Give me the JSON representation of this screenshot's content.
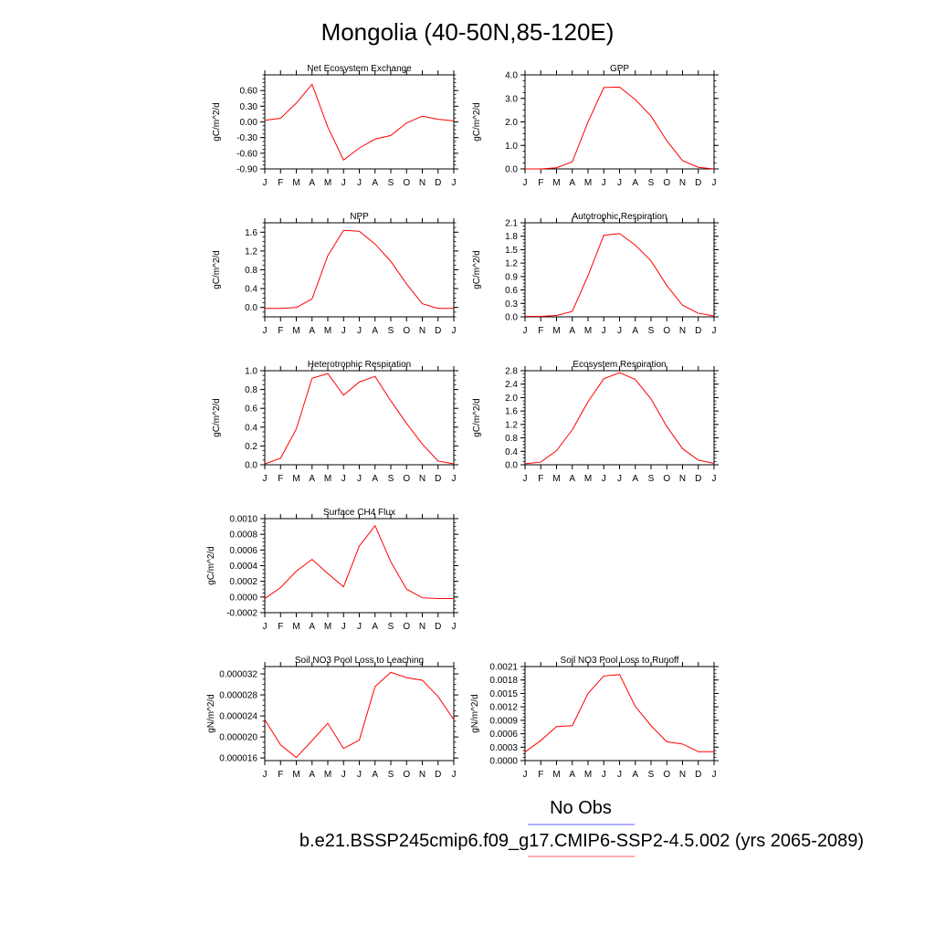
{
  "figure": {
    "title": "Mongolia (40-50N,85-120E)"
  },
  "legend": {
    "obs_label": "No Obs",
    "case_label": "b.e21.BSSP245cmip6.f09_g17.CMIP6-SSP2-4.5.002 (yrs 2065-2089)",
    "obs_color": "#7f7fff",
    "case_color": "#ff7f7f"
  },
  "chart_data": [
    {
      "type": "line",
      "title": "Net Ecosystem Exchange",
      "ylabel": "gC/m^2/d",
      "categories": [
        "J",
        "F",
        "M",
        "A",
        "M",
        "J",
        "J",
        "A",
        "S",
        "O",
        "N",
        "D",
        "J"
      ],
      "values": [
        0.03,
        0.07,
        0.36,
        0.72,
        -0.1,
        -0.73,
        -0.5,
        -0.33,
        -0.26,
        -0.02,
        0.11,
        0.05,
        0.02
      ],
      "ylim": [
        -0.9,
        0.9
      ],
      "yticks": [
        -0.9,
        -0.6,
        -0.3,
        0.0,
        0.3,
        0.6
      ],
      "ytick_labels": [
        "-0.90",
        "-0.60",
        "-0.30",
        "0.00",
        "0.30",
        "0.60"
      ],
      "color": "#ff0000"
    },
    {
      "type": "line",
      "title": "GPP",
      "ylabel": "gC/m^2/d",
      "categories": [
        "J",
        "F",
        "M",
        "A",
        "M",
        "J",
        "J",
        "A",
        "S",
        "O",
        "N",
        "D",
        "J"
      ],
      "values": [
        0.0,
        0.0,
        0.05,
        0.3,
        2.0,
        3.46,
        3.48,
        2.95,
        2.25,
        1.2,
        0.35,
        0.07,
        0.0
      ],
      "ylim": [
        0,
        4.0
      ],
      "yticks": [
        0,
        1,
        2,
        3,
        4
      ],
      "ytick_labels": [
        "0.0",
        "1.0",
        "2.0",
        "3.0",
        "4.0"
      ],
      "color": "#ff0000"
    },
    {
      "type": "line",
      "title": "NPP",
      "ylabel": "gC/m^2/d",
      "categories": [
        "J",
        "F",
        "M",
        "A",
        "M",
        "J",
        "J",
        "A",
        "S",
        "O",
        "N",
        "D",
        "J"
      ],
      "values": [
        -0.02,
        -0.02,
        0.0,
        0.18,
        1.1,
        1.64,
        1.62,
        1.35,
        0.98,
        0.5,
        0.08,
        -0.02,
        -0.02
      ],
      "ylim": [
        -0.2,
        1.8
      ],
      "yticks": [
        0.0,
        0.4,
        0.8,
        1.2,
        1.6
      ],
      "ytick_labels": [
        "0.0",
        "0.4",
        "0.8",
        "1.2",
        "1.6"
      ],
      "color": "#ff0000"
    },
    {
      "type": "line",
      "title": "Autotrophic Respiration",
      "ylabel": "gC/m^2/d",
      "categories": [
        "J",
        "F",
        "M",
        "A",
        "M",
        "J",
        "J",
        "A",
        "S",
        "O",
        "N",
        "D",
        "J"
      ],
      "values": [
        0.01,
        0.01,
        0.03,
        0.12,
        0.92,
        1.82,
        1.86,
        1.6,
        1.25,
        0.7,
        0.26,
        0.08,
        0.02
      ],
      "ylim": [
        0,
        2.1
      ],
      "yticks": [
        0,
        0.3,
        0.6,
        0.9,
        1.2,
        1.5,
        1.8,
        2.1
      ],
      "ytick_labels": [
        "0.0",
        "0.3",
        "0.6",
        "0.9",
        "1.2",
        "1.5",
        "1.8",
        "2.1"
      ],
      "color": "#ff0000"
    },
    {
      "type": "line",
      "title": "Heterotrophic Respiration",
      "ylabel": "gC/m^2/d",
      "categories": [
        "J",
        "F",
        "M",
        "A",
        "M",
        "J",
        "J",
        "A",
        "S",
        "O",
        "N",
        "D",
        "J"
      ],
      "values": [
        0.01,
        0.07,
        0.38,
        0.92,
        0.97,
        0.74,
        0.88,
        0.94,
        0.68,
        0.44,
        0.22,
        0.04,
        0.01
      ],
      "ylim": [
        0,
        1.0
      ],
      "yticks": [
        0,
        0.2,
        0.4,
        0.6,
        0.8,
        1.0
      ],
      "ytick_labels": [
        "0.0",
        "0.2",
        "0.4",
        "0.6",
        "0.8",
        "1.0"
      ],
      "color": "#ff0000"
    },
    {
      "type": "line",
      "title": "Ecosystem Respiration",
      "ylabel": "gC/m^2/d",
      "categories": [
        "J",
        "F",
        "M",
        "A",
        "M",
        "J",
        "J",
        "A",
        "S",
        "O",
        "N",
        "D",
        "J"
      ],
      "values": [
        0.03,
        0.08,
        0.42,
        1.04,
        1.88,
        2.56,
        2.74,
        2.54,
        1.96,
        1.14,
        0.48,
        0.14,
        0.04
      ],
      "ylim": [
        0,
        2.8
      ],
      "yticks": [
        0,
        0.4,
        0.8,
        1.2,
        1.6,
        2.0,
        2.4,
        2.8
      ],
      "ytick_labels": [
        "0.0",
        "0.4",
        "0.8",
        "1.2",
        "1.6",
        "2.0",
        "2.4",
        "2.8"
      ],
      "color": "#ff0000"
    },
    {
      "type": "line",
      "title": "Surface CH4 Flux",
      "ylabel": "gC/m^2/d",
      "categories": [
        "J",
        "F",
        "M",
        "A",
        "M",
        "J",
        "J",
        "A",
        "S",
        "O",
        "N",
        "D",
        "J"
      ],
      "values": [
        -2e-05,
        0.00012,
        0.00033,
        0.00048,
        0.0003,
        0.00013,
        0.00065,
        0.00091,
        0.00045,
        0.0001,
        -1e-05,
        -2e-05,
        -2e-05
      ],
      "ylim": [
        -0.0002,
        0.001
      ],
      "yticks": [
        -0.0002,
        0.0,
        0.0002,
        0.0004,
        0.0006,
        0.0008,
        0.001
      ],
      "ytick_labels": [
        "-0.0002",
        "0.0000",
        "0.0002",
        "0.0004",
        "0.0006",
        "0.0008",
        "0.0010"
      ],
      "color": "#ff0000"
    },
    {
      "type": "line",
      "title": "Soil NO3 Pool Loss to Leaching",
      "ylabel": "gN/m^2/d",
      "categories": [
        "J",
        "F",
        "M",
        "A",
        "M",
        "J",
        "J",
        "A",
        "S",
        "O",
        "N",
        "D",
        "J"
      ],
      "values": [
        2.33e-05,
        1.85e-05,
        1.61e-05,
        1.93e-05,
        2.26e-05,
        1.78e-05,
        1.94e-05,
        2.96e-05,
        3.23e-05,
        3.13e-05,
        3.08e-05,
        2.77e-05,
        2.33e-05
      ],
      "ylim": [
        1.55e-05,
        3.34e-05
      ],
      "yticks": [
        1.6e-05,
        2e-05,
        2.4e-05,
        2.8e-05,
        3.2e-05
      ],
      "ytick_labels": [
        "0.000016",
        "0.000020",
        "0.000024",
        "0.000028",
        "0.000032"
      ],
      "color": "#ff0000"
    },
    {
      "type": "line",
      "title": "Soil NO3 Pool Loss to Runoff",
      "ylabel": "gN/m^2/d",
      "categories": [
        "J",
        "F",
        "M",
        "A",
        "M",
        "J",
        "J",
        "A",
        "S",
        "O",
        "N",
        "D",
        "J"
      ],
      "values": [
        0.00019,
        0.00045,
        0.00076,
        0.00078,
        0.0015,
        0.00189,
        0.00192,
        0.00121,
        0.00078,
        0.00042,
        0.00037,
        0.0002,
        0.0002
      ],
      "ylim": [
        0,
        0.0021
      ],
      "yticks": [
        0,
        0.0003,
        0.0006,
        0.0009,
        0.0012,
        0.0015,
        0.0018,
        0.0021
      ],
      "ytick_labels": [
        "0.0000",
        "0.0003",
        "0.0006",
        "0.0009",
        "0.0012",
        "0.0015",
        "0.0018",
        "0.0021"
      ],
      "color": "#ff0000"
    }
  ]
}
